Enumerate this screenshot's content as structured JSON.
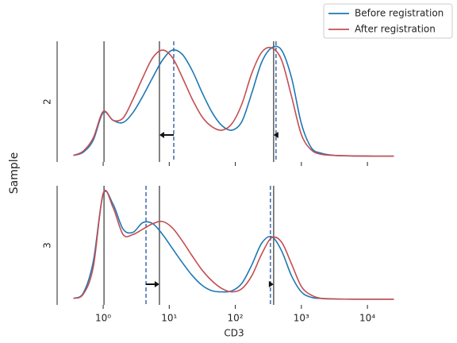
{
  "chart_data": {
    "type": "line",
    "xlabel": "CD3",
    "ylabel": "Sample",
    "xscale": "log",
    "xlim": [
      0.19,
      42000
    ],
    "xticks": [
      {
        "value": 1,
        "label": "10⁰"
      },
      {
        "value": 10,
        "label": "10¹"
      },
      {
        "value": 100,
        "label": "10²"
      },
      {
        "value": 1000,
        "label": "10³"
      },
      {
        "value": 10000,
        "label": "10⁴"
      }
    ],
    "ylim": [
      -0.05,
      1.05
    ],
    "legend": "upper right",
    "series": [
      {
        "name": "Before registration",
        "color": "#1f77b4"
      },
      {
        "name": "After registration",
        "color": "#c44e52"
      }
    ],
    "x": [
      0.355,
      0.501,
      0.708,
      1,
      1.41,
      2.0,
      2.82,
      3.98,
      5.62,
      7.94,
      11.2,
      15.8,
      22.4,
      31.6,
      44.7,
      63.1,
      89.1,
      126,
      178,
      251,
      355,
      501,
      708,
      1000,
      1413,
      1995,
      3162,
      6310,
      12589,
      25119
    ],
    "reference_landmarks": [
      1.03,
      7.1,
      380
    ],
    "reference_color": "#666666",
    "landmark_color": "#4c72b0",
    "arrow_color": "#111111",
    "panels": [
      {
        "label": "2",
        "values": [
          [
            0.01,
            0.04,
            0.15,
            0.4,
            0.33,
            0.31,
            0.4,
            0.55,
            0.72,
            0.88,
            0.97,
            0.93,
            0.78,
            0.58,
            0.4,
            0.28,
            0.24,
            0.32,
            0.58,
            0.86,
            0.99,
            0.97,
            0.72,
            0.3,
            0.08,
            0.03,
            0.01,
            0.005,
            0.003,
            0.003
          ],
          [
            0.01,
            0.05,
            0.17,
            0.41,
            0.33,
            0.35,
            0.52,
            0.72,
            0.9,
            0.97,
            0.9,
            0.72,
            0.52,
            0.36,
            0.27,
            0.24,
            0.3,
            0.48,
            0.76,
            0.95,
            0.99,
            0.88,
            0.55,
            0.2,
            0.06,
            0.02,
            0.01,
            0.005,
            0.003,
            0.003
          ]
        ],
        "landmarks": [
          11.7,
          413
        ]
      },
      {
        "label": "3",
        "values": [
          [
            0.01,
            0.06,
            0.35,
            0.97,
            0.88,
            0.65,
            0.62,
            0.71,
            0.7,
            0.6,
            0.47,
            0.34,
            0.22,
            0.13,
            0.08,
            0.07,
            0.08,
            0.15,
            0.32,
            0.52,
            0.58,
            0.45,
            0.22,
            0.07,
            0.02,
            0.01,
            0.005,
            0.003,
            0.003,
            0.003
          ],
          [
            0.01,
            0.05,
            0.3,
            0.98,
            0.85,
            0.6,
            0.6,
            0.65,
            0.7,
            0.72,
            0.66,
            0.54,
            0.4,
            0.27,
            0.17,
            0.1,
            0.07,
            0.1,
            0.22,
            0.42,
            0.57,
            0.53,
            0.33,
            0.12,
            0.04,
            0.01,
            0.005,
            0.003,
            0.003,
            0.003
          ]
        ],
        "landmarks": [
          4.45,
          340
        ]
      }
    ]
  }
}
